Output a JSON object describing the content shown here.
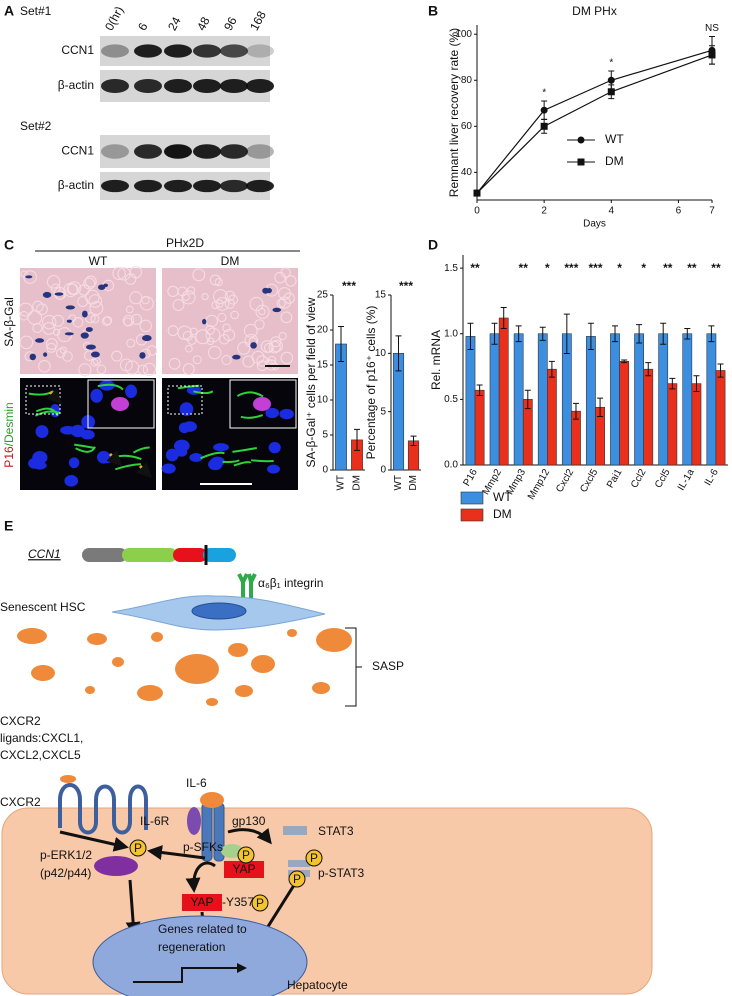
{
  "panel_labels": [
    "A",
    "B",
    "C",
    "D",
    "E"
  ],
  "panel_a": {
    "timepoints": [
      "0(hr)",
      "6",
      "24",
      "48",
      "96",
      "168"
    ],
    "sets": [
      {
        "label": "Set#1",
        "rows": [
          "CCN1",
          "β-actin"
        ]
      },
      {
        "label": "Set#2",
        "rows": [
          "CCN1",
          "β-actin"
        ]
      }
    ]
  },
  "panel_c": {
    "treatment": "PHx2D",
    "groups": [
      "WT",
      "DM"
    ],
    "stain": "SA-β-Gal",
    "fluorescence": [
      "P16",
      "/Desmin"
    ]
  },
  "panel_e": {
    "gene": "CCN1",
    "integrin": "α₆β₁ integrin",
    "cell": "Senescent HSC",
    "secretome": "SASP",
    "ligands": [
      "CXCR2",
      "ligands:CXCL1,",
      "CXCL2,CXCL5"
    ],
    "receptor": "CXCR2",
    "cytokine": "IL-6",
    "cytokine_receptor": "IL-6R",
    "coreceptor": "gp130",
    "erk": [
      "p-ERK1/2",
      "(p42/p44)"
    ],
    "sfk": "p-SFKs",
    "stat3": "STAT3",
    "pstat3": "p-STAT3",
    "yap": "YAP",
    "yap_site": "-Y357",
    "phospho": "P",
    "nucleus": [
      "Genes related to",
      "regeneration"
    ],
    "hepatocyte": "Hepatocyte"
  },
  "chart_data": [
    {
      "type": "line",
      "title": "DM PHx",
      "x_label": "Days",
      "y_label": "Remnant liver recovery rate (%)",
      "x": [
        0,
        2,
        4,
        7
      ],
      "xlim": [
        0,
        7
      ],
      "xticks": [
        0,
        2,
        4,
        6,
        7
      ],
      "ylim": [
        28,
        104
      ],
      "yticks": [
        40,
        60,
        80,
        100
      ],
      "series": [
        {
          "name": "WT",
          "color": "#111111",
          "marker": "circle",
          "values": [
            31,
            67,
            80,
            93
          ],
          "errors": [
            0,
            4,
            4,
            6
          ]
        },
        {
          "name": "DM",
          "color": "#111111",
          "marker": "square",
          "values": [
            31,
            60,
            75,
            91
          ],
          "errors": [
            0,
            3,
            3,
            4
          ]
        }
      ],
      "annotations": [
        {
          "x": 2,
          "text": "*"
        },
        {
          "x": 4,
          "text": "*"
        },
        {
          "x": 7,
          "text": "NS"
        }
      ],
      "legend": "right"
    },
    {
      "type": "bar",
      "y_label": "SA-β-Gal⁺ cells per field of view",
      "categories": [
        "WT",
        "DM"
      ],
      "values": [
        18,
        4.3
      ],
      "errors": [
        2.5,
        1.5
      ],
      "colors": [
        "#3b8ee0",
        "#e8301c"
      ],
      "ylim": [
        0,
        25
      ],
      "yticks": [
        0,
        5,
        10,
        15,
        20,
        25
      ],
      "annotation": "***"
    },
    {
      "type": "bar",
      "y_label": "Percentage of p16⁺ cells (%)",
      "categories": [
        "WT",
        "DM"
      ],
      "values": [
        10,
        2.5
      ],
      "errors": [
        1.5,
        0.4
      ],
      "colors": [
        "#3b8ee0",
        "#e8301c"
      ],
      "ylim": [
        0,
        15
      ],
      "yticks": [
        0,
        5,
        10,
        15
      ],
      "annotation": "***"
    },
    {
      "type": "bar",
      "y_label": "Rel. mRNA",
      "categories": [
        "P16",
        "Mmp2",
        "Mmp3",
        "Mmp12",
        "Cxcl2",
        "Cxcl5",
        "Pai1",
        "Ccl2",
        "Ccl5",
        "IL-1a",
        "IL-6"
      ],
      "series": [
        {
          "name": "WT",
          "color": "#3b8ee0",
          "values": [
            0.98,
            1.0,
            1.0,
            1.0,
            1.0,
            0.98,
            1.0,
            1.0,
            1.0,
            1.0,
            1.0
          ],
          "errors": [
            0.1,
            0.08,
            0.06,
            0.05,
            0.15,
            0.1,
            0.06,
            0.07,
            0.08,
            0.04,
            0.06
          ]
        },
        {
          "name": "DM",
          "color": "#e8301c",
          "values": [
            0.57,
            1.12,
            0.5,
            0.73,
            0.41,
            0.44,
            0.79,
            0.73,
            0.62,
            0.62,
            0.72
          ],
          "errors": [
            0.04,
            0.08,
            0.07,
            0.06,
            0.06,
            0.07,
            0.01,
            0.05,
            0.04,
            0.06,
            0.05
          ]
        }
      ],
      "ylim": [
        0,
        1.6
      ],
      "yticks": [
        {
          "value": 0,
          "label": "0.0"
        },
        0.5,
        {
          "value": 1,
          "label": "1.0"
        },
        1.5
      ],
      "annotations": [
        "**",
        null,
        "**",
        "*",
        "***",
        "***",
        "*",
        "*",
        "**",
        "**",
        "**"
      ],
      "legend": "bottom"
    }
  ]
}
